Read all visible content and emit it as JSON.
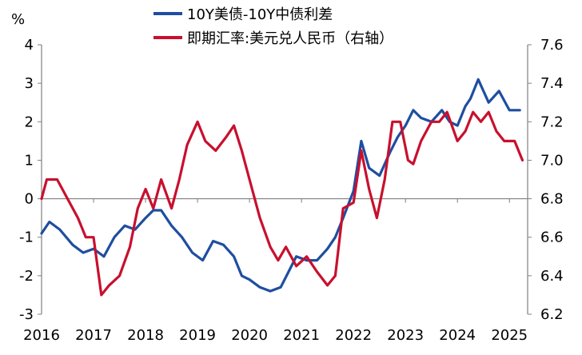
{
  "chart_data": {
    "type": "line",
    "left_axis": {
      "unit_label": "%",
      "ylim": [
        -3,
        4
      ],
      "ticks": [
        -3,
        -2,
        -1,
        0,
        1,
        2,
        3,
        4
      ]
    },
    "right_axis": {
      "ylim": [
        6.2,
        7.6
      ],
      "ticks": [
        "6.2",
        "6.4",
        "6.6",
        "6.8",
        "7.0",
        "7.2",
        "7.4",
        "7.6"
      ]
    },
    "x_axis": {
      "xlim": [
        2016.0,
        2025.35
      ],
      "ticks": [
        "2016",
        "2017",
        "2018",
        "2019",
        "2020",
        "2021",
        "2022",
        "2023",
        "2024",
        "2025"
      ]
    },
    "grid": false,
    "legend_placement": "top-center",
    "series": [
      {
        "name": "10Y美债-10Y中债利差",
        "axis": "left",
        "color": "#1F4EA0",
        "x": [
          2016.0,
          2016.15,
          2016.35,
          2016.6,
          2016.8,
          2017.0,
          2017.2,
          2017.4,
          2017.6,
          2017.8,
          2018.0,
          2018.15,
          2018.3,
          2018.5,
          2018.7,
          2018.9,
          2019.1,
          2019.3,
          2019.5,
          2019.7,
          2019.85,
          2020.0,
          2020.2,
          2020.4,
          2020.6,
          2020.75,
          2020.9,
          2021.1,
          2021.3,
          2021.5,
          2021.65,
          2021.8,
          2022.0,
          2022.15,
          2022.3,
          2022.5,
          2022.7,
          2022.85,
          2023.0,
          2023.15,
          2023.3,
          2023.5,
          2023.7,
          2023.85,
          2024.0,
          2024.15,
          2024.25,
          2024.4,
          2024.6,
          2024.8,
          2025.0,
          2025.2
        ],
        "values": [
          -0.9,
          -0.6,
          -0.8,
          -1.2,
          -1.4,
          -1.3,
          -1.5,
          -1.0,
          -0.7,
          -0.8,
          -0.5,
          -0.3,
          -0.3,
          -0.7,
          -1.0,
          -1.4,
          -1.6,
          -1.1,
          -1.2,
          -1.5,
          -2.0,
          -2.1,
          -2.3,
          -2.4,
          -2.3,
          -1.9,
          -1.5,
          -1.6,
          -1.6,
          -1.3,
          -1.0,
          -0.5,
          0.2,
          1.5,
          0.8,
          0.6,
          1.2,
          1.6,
          1.9,
          2.3,
          2.1,
          2.0,
          2.3,
          2.0,
          1.9,
          2.4,
          2.6,
          3.1,
          2.5,
          2.8,
          2.3,
          2.3
        ]
      },
      {
        "name": "即期汇率:美元兑人民币（右轴）",
        "axis": "right",
        "color": "#C8102E",
        "x": [
          2016.0,
          2016.1,
          2016.3,
          2016.5,
          2016.7,
          2016.85,
          2017.0,
          2017.15,
          2017.3,
          2017.5,
          2017.7,
          2017.85,
          2018.0,
          2018.15,
          2018.3,
          2018.5,
          2018.65,
          2018.8,
          2019.0,
          2019.15,
          2019.35,
          2019.55,
          2019.7,
          2019.85,
          2020.0,
          2020.2,
          2020.4,
          2020.55,
          2020.7,
          2020.9,
          2021.1,
          2021.3,
          2021.5,
          2021.65,
          2021.8,
          2022.0,
          2022.15,
          2022.3,
          2022.45,
          2022.6,
          2022.75,
          2022.9,
          2023.05,
          2023.15,
          2023.3,
          2023.5,
          2023.65,
          2023.8,
          2024.0,
          2024.15,
          2024.3,
          2024.45,
          2024.6,
          2024.75,
          2024.9,
          2025.1,
          2025.25
        ],
        "values": [
          6.8,
          6.9,
          6.9,
          6.8,
          6.7,
          6.6,
          6.6,
          6.3,
          6.35,
          6.4,
          6.55,
          6.75,
          6.85,
          6.75,
          6.9,
          6.75,
          6.9,
          7.08,
          7.2,
          7.1,
          7.05,
          7.12,
          7.18,
          7.05,
          6.9,
          6.7,
          6.55,
          6.48,
          6.55,
          6.45,
          6.5,
          6.42,
          6.35,
          6.4,
          6.75,
          6.78,
          7.05,
          6.85,
          6.7,
          6.9,
          7.2,
          7.2,
          7.0,
          6.98,
          7.1,
          7.2,
          7.2,
          7.25,
          7.1,
          7.15,
          7.25,
          7.2,
          7.25,
          7.15,
          7.1,
          7.1,
          7.0
        ]
      }
    ]
  }
}
